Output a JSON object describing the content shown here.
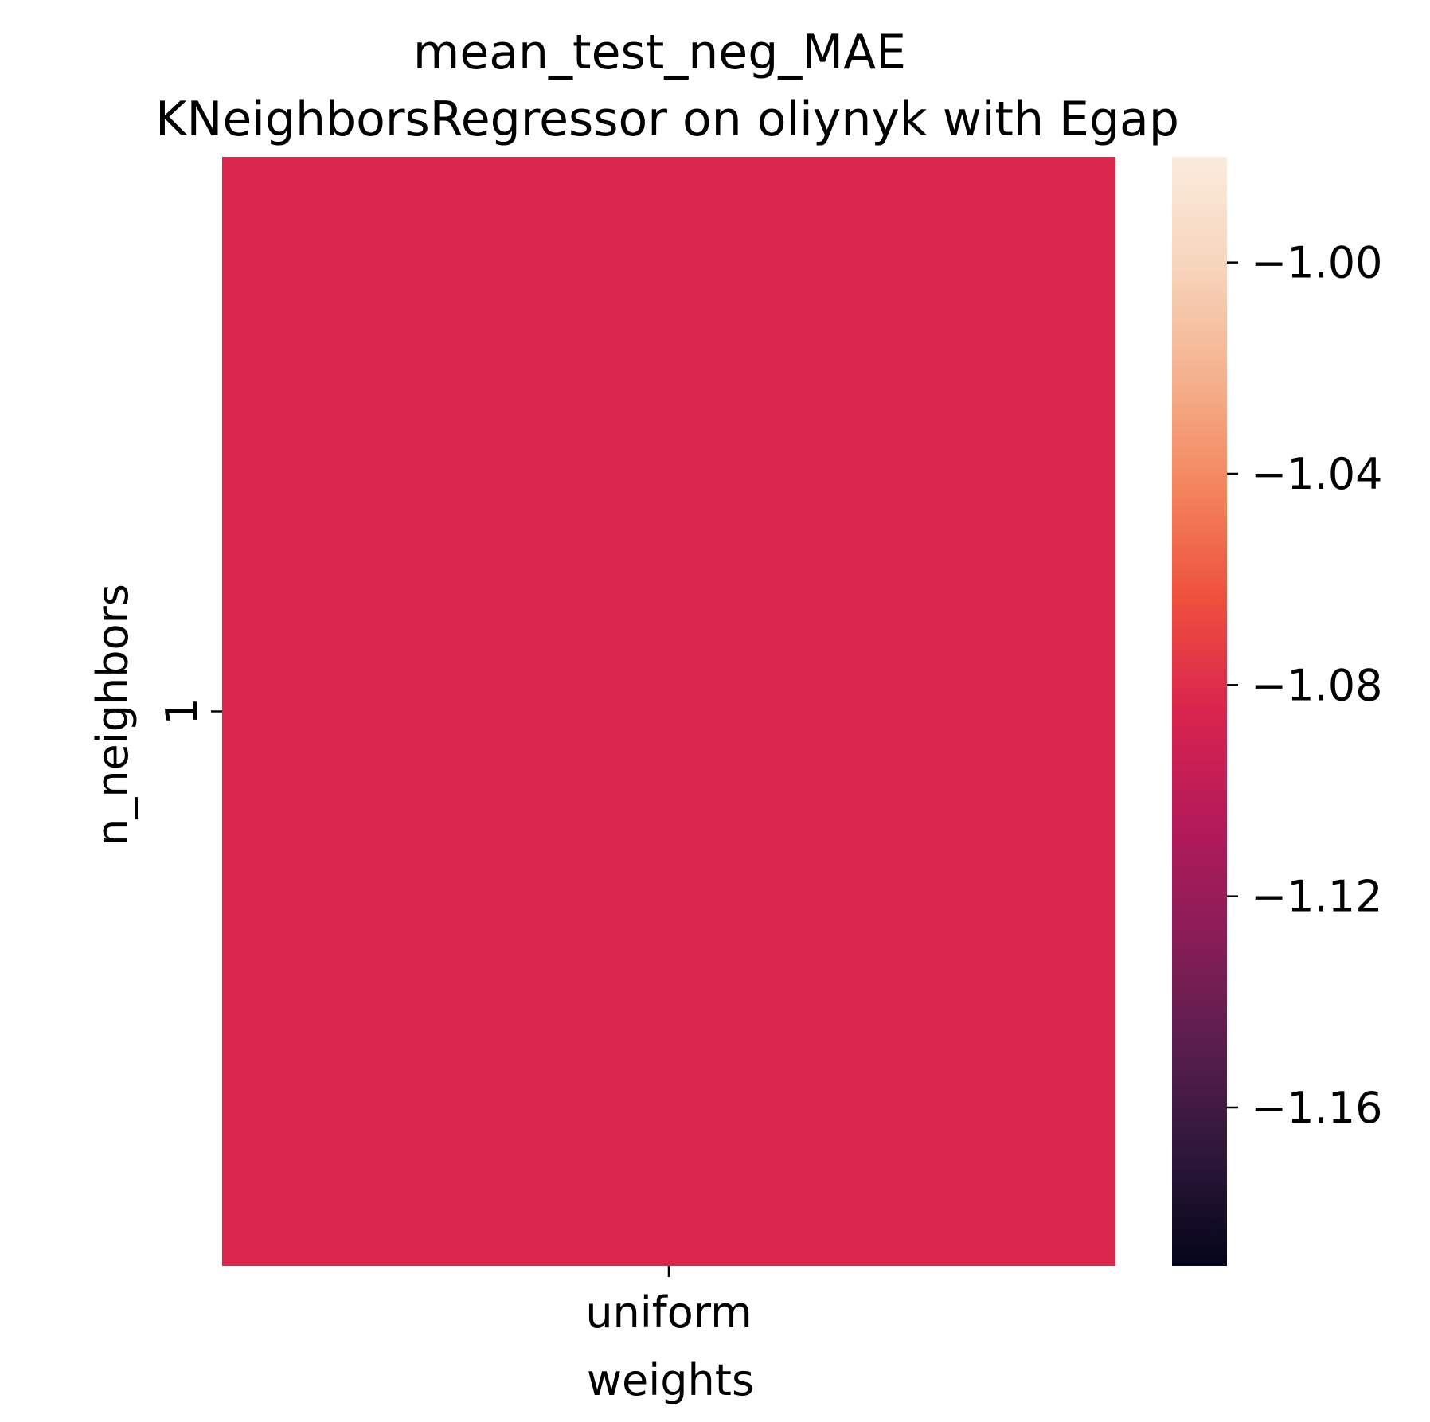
{
  "chart_data": {
    "type": "heatmap",
    "title": "mean_test_neg_MAE\nKNeighborsRegressor on oliynyk with Egap",
    "xlabel": "weights",
    "ylabel": "n_neighbors",
    "x_categories": [
      "uniform"
    ],
    "y_categories": [
      "1"
    ],
    "values": [
      [
        -1.084
      ]
    ],
    "colorbar": {
      "range": [
        -1.19,
        -0.98
      ],
      "ticks": [
        -1.16,
        -1.12,
        -1.08,
        -1.04,
        -1.0
      ],
      "tick_labels": [
        "−1.16",
        "−1.12",
        "−1.08",
        "−1.04",
        "−1.00"
      ],
      "colormap": "rocket",
      "colormap_stops": [
        "#03051a",
        "#2d1739",
        "#5a1e4d",
        "#8a1d58",
        "#b51a59",
        "#d9244e",
        "#ee4f3e",
        "#f3845c",
        "#f5b18d",
        "#f7d4bb",
        "#faebdd"
      ]
    }
  }
}
